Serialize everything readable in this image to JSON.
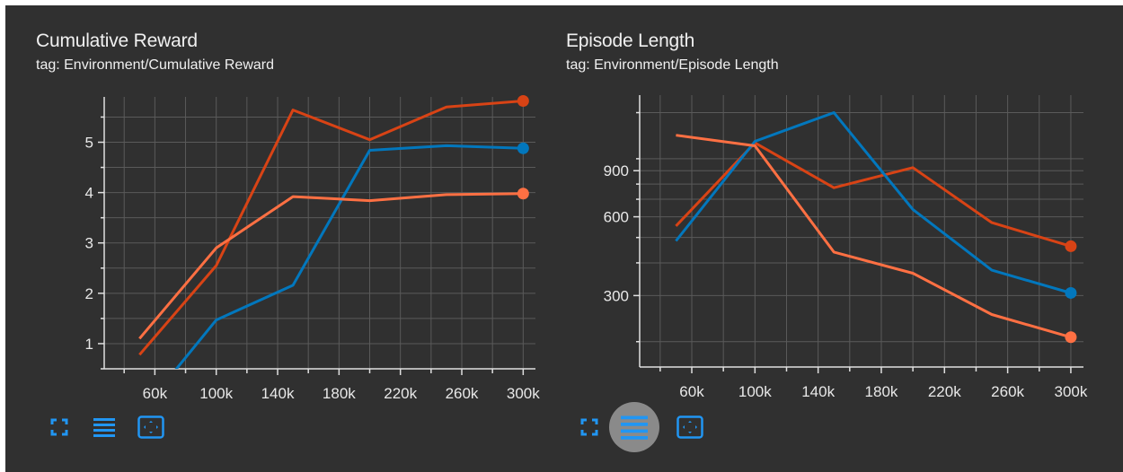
{
  "colors": {
    "background": "#303030",
    "grid": "#5a5a5a",
    "axis": "#e0e0e0",
    "text": "#f0f0f0",
    "icon": "#2196f3",
    "active_button_bg": "#8a8a8a"
  },
  "panels": [
    {
      "title": "Cumulative Reward",
      "subtitle": "tag: Environment/Cumulative Reward",
      "toolbar": {
        "fullscreen_icon": "fullscreen-icon",
        "toggle_y_axis_icon": "lines-icon",
        "fit_domain_icon": "fit-domain-icon"
      }
    },
    {
      "title": "Episode Length",
      "subtitle": "tag: Environment/Episode Length",
      "toolbar": {
        "fullscreen_icon": "fullscreen-icon",
        "toggle_y_axis_icon": "lines-icon",
        "fit_domain_icon": "fit-domain-icon",
        "active": "toggle_y_axis"
      }
    }
  ],
  "chart_data": [
    {
      "type": "line",
      "title": "Cumulative Reward",
      "subtitle": "tag: Environment/Cumulative Reward",
      "xlabel": "",
      "ylabel": "",
      "x_ticks": [
        60000,
        100000,
        140000,
        180000,
        220000,
        260000,
        300000
      ],
      "x_tick_labels": [
        "60k",
        "100k",
        "140k",
        "180k",
        "220k",
        "260k",
        "300k"
      ],
      "y_ticks": [
        1,
        2,
        3,
        4,
        5
      ],
      "y_tick_labels": [
        "1",
        "2",
        "3",
        "4",
        "5"
      ],
      "xlim": [
        27000,
        308000
      ],
      "ylim": [
        0.5,
        5.9
      ],
      "grid": true,
      "scale": "linear",
      "series": [
        {
          "color": "#d84315",
          "x": [
            50000,
            100000,
            150000,
            200000,
            250000,
            300000
          ],
          "y": [
            0.78,
            2.55,
            5.64,
            5.05,
            5.7,
            5.82
          ]
        },
        {
          "color": "#0277bd",
          "x": [
            50000,
            100000,
            150000,
            200000,
            250000,
            300000
          ],
          "y": [
            -0.4,
            1.47,
            2.16,
            4.84,
            4.93,
            4.88
          ]
        },
        {
          "color": "#ff7043",
          "x": [
            50000,
            100000,
            150000,
            200000,
            250000,
            300000
          ],
          "y": [
            1.1,
            2.9,
            3.92,
            3.84,
            3.96,
            3.98
          ]
        }
      ]
    },
    {
      "type": "line",
      "title": "Episode Length",
      "subtitle": "tag: Environment/Episode Length",
      "xlabel": "",
      "ylabel": "",
      "x_ticks": [
        60000,
        100000,
        140000,
        180000,
        220000,
        260000,
        300000
      ],
      "x_tick_labels": [
        "60k",
        "100k",
        "140k",
        "180k",
        "220k",
        "260k",
        "300k"
      ],
      "y_ticks": [
        300,
        600,
        900
      ],
      "y_tick_labels": [
        "300",
        "600",
        "900"
      ],
      "xlim": [
        27000,
        308000
      ],
      "ylim": [
        160,
        1750
      ],
      "grid": true,
      "scale": "log",
      "series": [
        {
          "color": "#d84315",
          "x": [
            50000,
            100000,
            150000,
            200000,
            250000,
            300000
          ],
          "y": [
            553,
            1150,
            775,
            925,
            570,
            463
          ]
        },
        {
          "color": "#0277bd",
          "x": [
            50000,
            100000,
            150000,
            200000,
            250000,
            300000
          ],
          "y": [
            485,
            1165,
            1500,
            640,
            375,
            307
          ]
        },
        {
          "color": "#ff7043",
          "x": [
            50000,
            100000,
            150000,
            200000,
            250000,
            300000
          ],
          "y": [
            1230,
            1120,
            440,
            365,
            254,
            208
          ]
        }
      ]
    }
  ]
}
